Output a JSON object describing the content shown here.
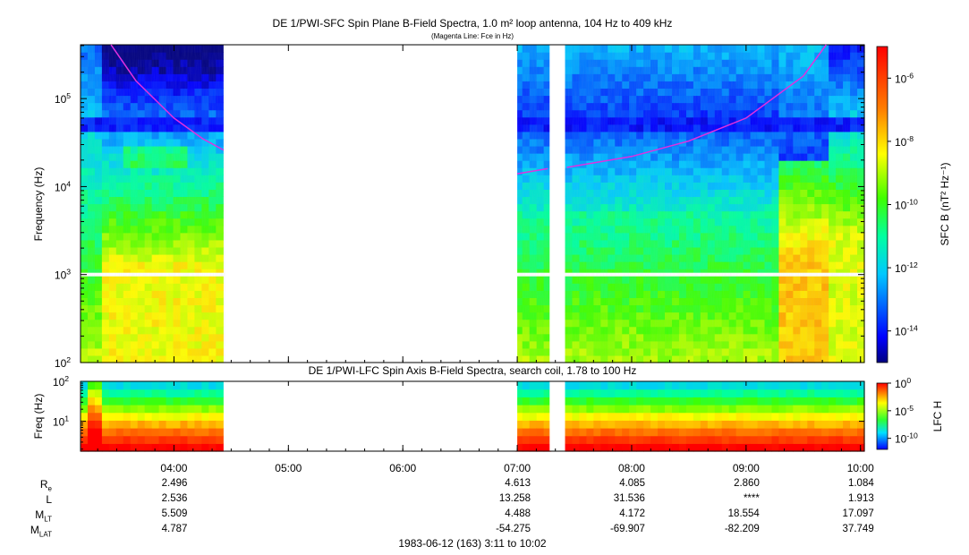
{
  "chart_data": [
    {
      "type": "heatmap",
      "title": "DE 1/PWI-SFC  Spin Plane B-Field Spectra, 1.0 m² loop antenna, 104 Hz to 409 kHz",
      "subtitle": "(Magenta Line: Fce in Hz)",
      "ylabel": "Frequency (Hz)",
      "yscale": "log",
      "ylim": [
        100,
        409000
      ],
      "ytick_values": [
        100,
        1000,
        10000,
        100000
      ],
      "ytick_labels": [
        "10^2",
        "10^3",
        "10^4",
        "10^5"
      ],
      "colorbar_label": "SFC B (nT² Hz⁻¹)",
      "colorbar_range_log10": [
        -15,
        -5
      ],
      "colorbar_tick_values": [
        -14,
        -12,
        -10,
        -8,
        -6
      ],
      "colorbar_tick_labels": [
        "10^-14",
        "10^-12",
        "10^-10",
        "10^-8",
        "10^-6"
      ],
      "data_gaps": [
        [
          "04:27",
          "07:00"
        ],
        [
          "07:17",
          "07:25"
        ]
      ],
      "frequency_gap_hz": 1000,
      "fce_line": {
        "name": "Fce",
        "color": "#e030e0",
        "segments": [
          {
            "t": [
              "03:27",
              "03:40",
              "04:00",
              "04:15",
              "04:26"
            ],
            "f": [
              409000,
              160000,
              60000,
              35000,
              26000
            ]
          },
          {
            "t": [
              "07:00",
              "07:16"
            ],
            "f": [
              14000,
              16000
            ]
          },
          {
            "t": [
              "07:26",
              "08:00",
              "08:30",
              "09:00",
              "09:30",
              "09:42"
            ],
            "f": [
              16500,
              22000,
              33000,
              60000,
              180000,
              409000
            ]
          }
        ]
      }
    },
    {
      "type": "heatmap",
      "title": "DE 1/PWI-LFC  Spin Axis B-Field Spectra, search coil, 1.78 to 100 Hz",
      "ylabel": "Freq (Hz)",
      "yscale": "log",
      "ylim": [
        1.78,
        100
      ],
      "ytick_values": [
        10,
        100
      ],
      "ytick_labels": [
        "10^1",
        "10^2"
      ],
      "colorbar_label": "LFC H",
      "colorbar_range_log10": [
        -12,
        0
      ],
      "colorbar_tick_values": [
        0,
        -5,
        -10
      ],
      "colorbar_tick_labels": [
        "10^0",
        "10^-5",
        "10^-10"
      ],
      "data_gaps": [
        [
          "04:27",
          "07:00"
        ],
        [
          "07:17",
          "07:25"
        ]
      ]
    }
  ],
  "time_axis": {
    "range": [
      "03:11",
      "10:02"
    ],
    "tick_labels": [
      "04:00",
      "05:00",
      "06:00",
      "07:00",
      "08:00",
      "09:00",
      "10:00"
    ],
    "tick_hours": [
      4,
      5,
      6,
      7,
      8,
      9,
      10
    ]
  },
  "ephemeris": {
    "rows": [
      {
        "label": "R",
        "sub": "e",
        "values": [
          "2.496",
          "",
          "",
          "4.613",
          "4.085",
          "2.860",
          "1.084"
        ]
      },
      {
        "label": "L",
        "sub": "",
        "values": [
          "2.536",
          "",
          "",
          "13.258",
          "31.536",
          "****",
          "1.913"
        ]
      },
      {
        "label": "M",
        "sub": "LT",
        "values": [
          "5.509",
          "",
          "",
          "4.488",
          "4.172",
          "18.554",
          "17.097"
        ]
      },
      {
        "label": "M",
        "sub": "LAT",
        "values": [
          "4.787",
          "",
          "",
          "-54.275",
          "-69.907",
          "-82.209",
          "37.749"
        ]
      }
    ]
  },
  "footer": "1983-06-12 (163) 3:11 to 10:02"
}
